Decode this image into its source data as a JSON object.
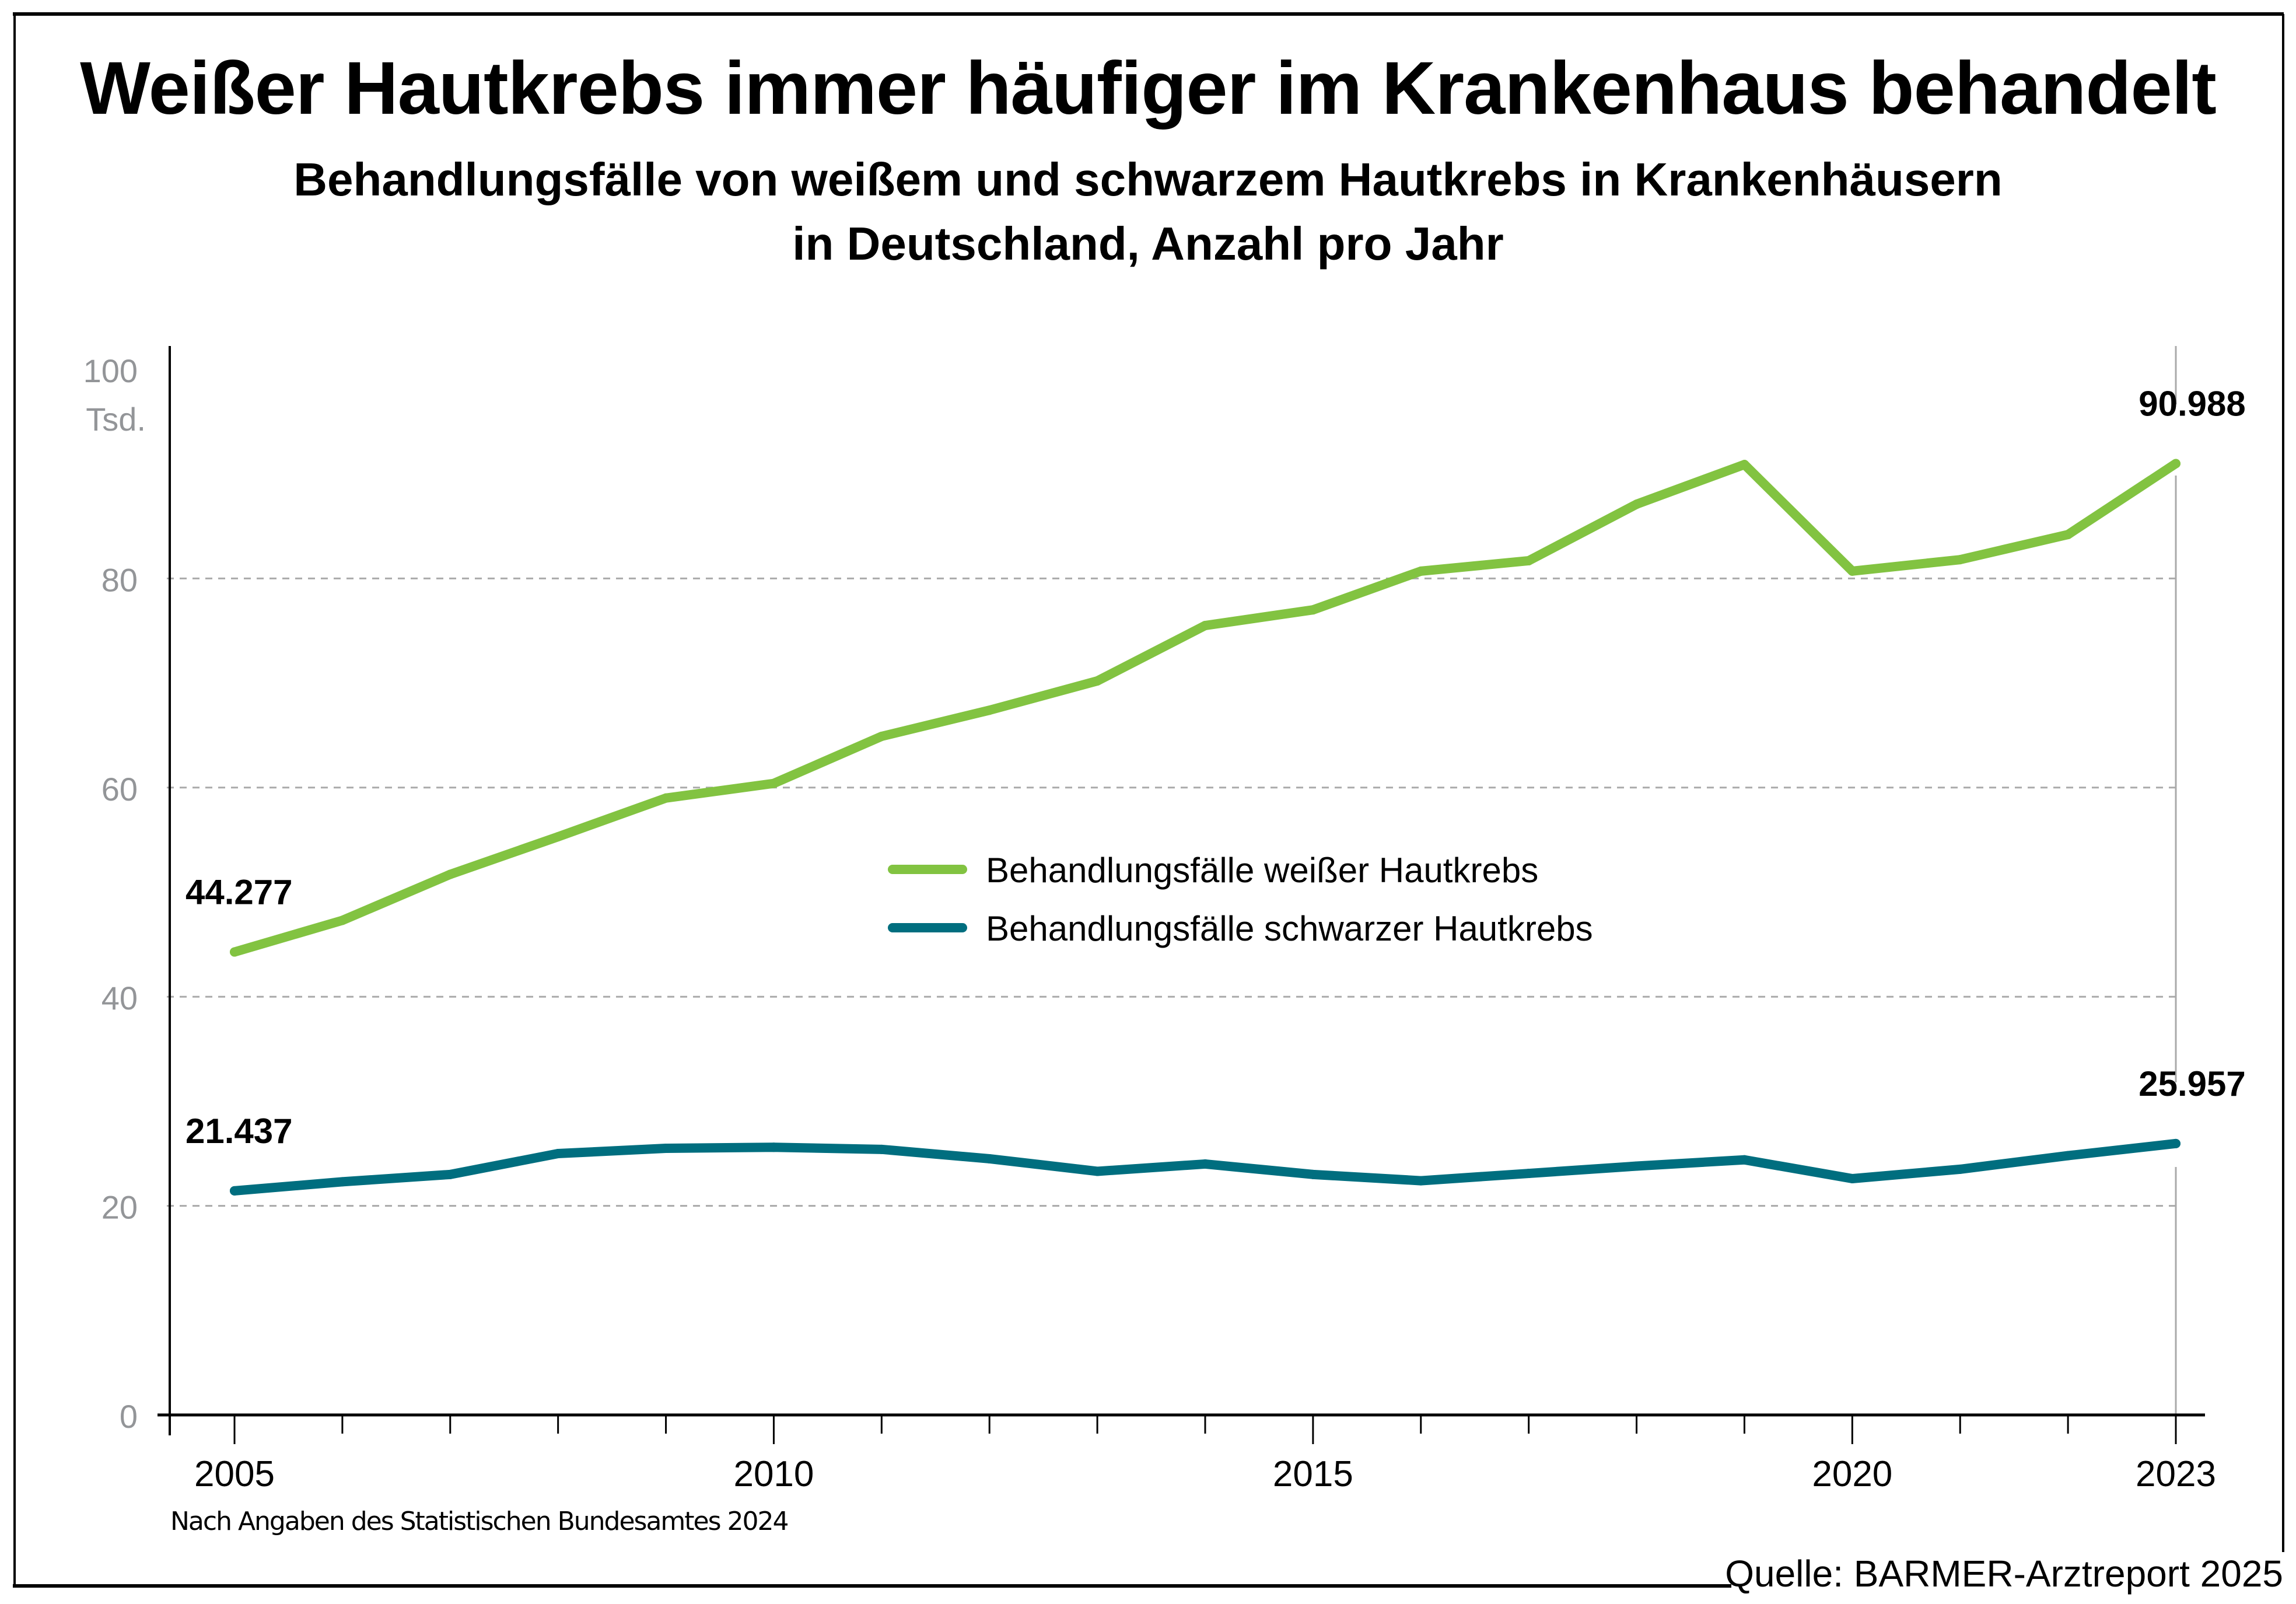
{
  "header": {
    "title": "Weißer Hautkrebs immer häufiger im Krankenhaus behandelt",
    "subtitle_line1": "Behandlungsfälle von weißem und schwarzem Hautkrebs in Krankenhäusern",
    "subtitle_line2": "in Deutschland, Anzahl pro Jahr"
  },
  "footer": {
    "note": "Nach Angaben des Statistischen Bundesamtes 2024",
    "source": "Quelle: BARMER-Arztreport 2025"
  },
  "chart_data": {
    "type": "line",
    "title": "Weißer Hautkrebs immer häufiger im Krankenhaus behandelt",
    "subtitle": "Behandlungsfälle von weißem und schwarzem Hautkrebs in Krankenhäusern in Deutschland, Anzahl pro Jahr",
    "xlabel": "",
    "ylabel": "Tsd.",
    "y_unit_label": "Tsd.",
    "ylim": [
      0,
      100
    ],
    "xlim": [
      2005,
      2023
    ],
    "y_ticks": [
      0,
      20,
      40,
      60,
      80,
      100
    ],
    "y_tick_labels": [
      "0",
      "20",
      "40",
      "60",
      "80",
      "100"
    ],
    "x_tick_labels": [
      "2005",
      "2010",
      "2015",
      "2020",
      "2023"
    ],
    "x_labeled_ticks": [
      2005,
      2010,
      2015,
      2020,
      2023
    ],
    "grid": "horizontal-dashed",
    "legend_position": "center",
    "x": [
      2005,
      2006,
      2007,
      2008,
      2009,
      2010,
      2011,
      2012,
      2013,
      2014,
      2015,
      2016,
      2017,
      2018,
      2019,
      2020,
      2021,
      2022,
      2023
    ],
    "series": [
      {
        "name": "Behandlungsfälle weißer Hautkrebs",
        "color": "#82c341",
        "values": [
          44.277,
          47.3,
          51.7,
          55.3,
          59.0,
          60.4,
          64.9,
          67.4,
          70.2,
          75.5,
          77.0,
          80.7,
          81.7,
          87.1,
          90.9,
          80.7,
          81.8,
          84.2,
          90.988
        ],
        "annotations": [
          {
            "x": 2005,
            "label": "44.277"
          },
          {
            "x": 2023,
            "label": "90.988"
          }
        ]
      },
      {
        "name": "Behandlungsfälle schwarzer Hautkrebs",
        "color": "#006e7f",
        "values": [
          21.437,
          22.3,
          23.0,
          25.0,
          25.5,
          25.6,
          25.4,
          24.5,
          23.3,
          24.0,
          23.0,
          22.4,
          23.1,
          23.8,
          24.4,
          22.6,
          23.5,
          24.8,
          25.957
        ],
        "annotations": [
          {
            "x": 2005,
            "label": "21.437"
          },
          {
            "x": 2023,
            "label": "25.957"
          }
        ]
      }
    ]
  }
}
